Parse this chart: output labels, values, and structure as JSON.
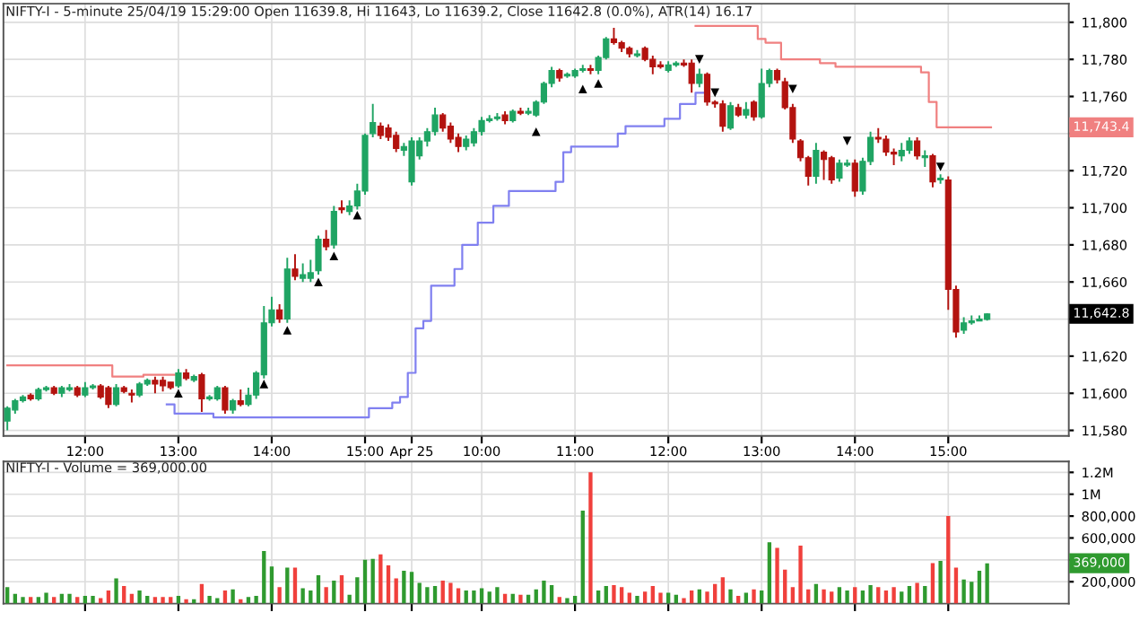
{
  "chart_data": [
    {
      "type": "candlestick",
      "title": "NIFTY-I - 5-minute 25/04/19 15:29:00 Open 11639.8, Hi 11643, Lo 11639.2, Close 11642.8 (0.0%), ATR(14) 16.17",
      "categories": [
        null,
        null,
        null,
        null,
        null,
        null,
        null,
        null,
        null,
        null,
        "12:00",
        null,
        null,
        null,
        null,
        null,
        null,
        null,
        null,
        null,
        null,
        null,
        "13:00",
        null,
        null,
        null,
        null,
        null,
        null,
        null,
        null,
        null,
        null,
        null,
        "14:00",
        null,
        null,
        null,
        null,
        null,
        null,
        null,
        null,
        null,
        null,
        null,
        "15:00",
        null,
        null,
        null,
        null,
        null,
        "Apr 25",
        null,
        null,
        null,
        null,
        null,
        null,
        null,
        null,
        "10:00",
        null,
        null,
        null,
        null,
        null,
        null,
        null,
        null,
        null,
        null,
        null,
        "11:00",
        null,
        null,
        null,
        null,
        null,
        null,
        null,
        null,
        null,
        null,
        null,
        "12:00",
        null,
        null,
        null,
        null,
        null,
        null,
        null,
        null,
        null,
        null,
        null,
        "13:00",
        null,
        null,
        null,
        null,
        null,
        null,
        null,
        null,
        null,
        null,
        null,
        "14:00",
        null,
        null,
        null,
        null,
        null,
        null,
        null,
        null,
        null,
        null,
        null,
        "15:00",
        null,
        null,
        null,
        null,
        null,
        null,
        null,
        null,
        null,
        null,
        null,
        null,
        null,
        null,
        null
      ],
      "ohlc": [
        [
          11585,
          11593,
          11580,
          11592
        ],
        [
          11591,
          11597,
          11589,
          11596
        ],
        [
          11596,
          11599,
          11595,
          11598
        ],
        [
          11599,
          11600,
          11596,
          11597
        ],
        [
          11597,
          11603,
          11596,
          11602
        ],
        [
          11602,
          11604,
          11601,
          11603
        ],
        [
          11603,
          11604,
          11599,
          11600
        ],
        [
          11600,
          11604,
          11598,
          11603
        ],
        [
          11602,
          11605,
          11601,
          11603
        ],
        [
          11603,
          11604,
          11598,
          11599
        ],
        [
          11599,
          11606,
          11598,
          11603
        ],
        [
          11603,
          11605,
          11602,
          11604
        ],
        [
          11604,
          11605,
          11597,
          11598
        ],
        [
          11603,
          11604,
          11592,
          11594
        ],
        [
          11594,
          11605,
          11593,
          11603
        ],
        [
          11603,
          11604,
          11600,
          11601
        ],
        [
          11600,
          11602,
          11595,
          11599
        ],
        [
          11599,
          11606,
          11598,
          11605
        ],
        [
          11605,
          11608,
          11604,
          11607
        ],
        [
          11607,
          11609,
          11600,
          11605
        ],
        [
          11607,
          11609,
          11601,
          11604
        ],
        [
          11606,
          11606,
          11602,
          11603
        ],
        [
          11604,
          11613,
          11603,
          11611
        ],
        [
          11611,
          11613,
          11607,
          11608
        ],
        [
          11607,
          11610,
          11606,
          11609
        ],
        [
          11610,
          11611,
          11590,
          11597
        ],
        [
          11597,
          11599,
          11596,
          11598
        ],
        [
          11597,
          11604,
          11596,
          11603
        ],
        [
          11603,
          11604,
          11589,
          11591
        ],
        [
          11591,
          11597,
          11589,
          11596
        ],
        [
          11596,
          11602,
          11593,
          11594
        ],
        [
          11594,
          11603,
          11593,
          11599
        ],
        [
          11599,
          11612,
          11597,
          11611
        ],
        [
          11610,
          11647,
          11608,
          11638
        ],
        [
          11638,
          11652,
          11636,
          11645
        ],
        [
          11645,
          11648,
          11638,
          11640
        ],
        [
          11640,
          11673,
          11638,
          11667
        ],
        [
          11667,
          11675,
          11661,
          11663
        ],
        [
          11662,
          11670,
          11660,
          11664
        ],
        [
          11662,
          11672,
          11660,
          11665
        ],
        [
          11666,
          11685,
          11664,
          11683
        ],
        [
          11683,
          11688,
          11677,
          11679
        ],
        [
          11680,
          11701,
          11678,
          11698
        ],
        [
          11700,
          11704,
          11697,
          11699
        ],
        [
          11698,
          11704,
          11696,
          11701
        ],
        [
          11701,
          11713,
          11699,
          11709
        ],
        [
          11709,
          11740,
          11707,
          11739
        ],
        [
          11740,
          11756,
          11738,
          11746
        ],
        [
          11744,
          11746,
          11737,
          11739
        ],
        [
          11743,
          11745,
          11736,
          11738
        ],
        [
          11739,
          11741,
          11730,
          11732
        ],
        [
          11731,
          11735,
          11728,
          11733
        ],
        [
          11714,
          11738,
          11712,
          11736
        ],
        [
          11728,
          11738,
          11726,
          11736
        ],
        [
          11736,
          11743,
          11733,
          11741
        ],
        [
          11741,
          11754,
          11739,
          11750
        ],
        [
          11750,
          11751,
          11741,
          11743
        ],
        [
          11744,
          11746,
          11735,
          11737
        ],
        [
          11738,
          11740,
          11730,
          11733
        ],
        [
          11733,
          11739,
          11731,
          11737
        ],
        [
          11735,
          11743,
          11733,
          11741
        ],
        [
          11741,
          11749,
          11739,
          11747
        ],
        [
          11747,
          11750,
          11746,
          11748
        ],
        [
          11748,
          11751,
          11747,
          11749
        ],
        [
          11750,
          11752,
          11745,
          11747
        ],
        [
          11747,
          11753,
          11746,
          11752
        ],
        [
          11752,
          11754,
          11750,
          11751
        ],
        [
          11751,
          11754,
          11750,
          11752
        ],
        [
          11750,
          11758,
          11749,
          11757
        ],
        [
          11757,
          11768,
          11756,
          11767
        ],
        [
          11767,
          11776,
          11765,
          11774
        ],
        [
          11774,
          11775,
          11768,
          11770
        ],
        [
          11771,
          11773,
          11770,
          11772
        ],
        [
          11771,
          11775,
          11770,
          11774
        ],
        [
          11774,
          11777,
          11773,
          11775
        ],
        [
          11775,
          11777,
          11772,
          11774
        ],
        [
          11774,
          11782,
          11772,
          11781
        ],
        [
          11781,
          11792,
          11780,
          11791
        ],
        [
          11791,
          11797,
          11788,
          11789
        ],
        [
          11789,
          11790,
          11784,
          11786
        ],
        [
          11786,
          11787,
          11781,
          11783
        ],
        [
          11782,
          11785,
          11781,
          11783
        ],
        [
          11786,
          11787,
          11779,
          11780
        ],
        [
          11780,
          11782,
          11772,
          11776
        ],
        [
          11777,
          11779,
          11775,
          11776
        ],
        [
          11774,
          11779,
          11773,
          11777
        ],
        [
          11777,
          11779,
          11776,
          11778
        ],
        [
          11778,
          11780,
          11776,
          11777
        ],
        [
          11778,
          11780,
          11762,
          11767
        ],
        [
          11767,
          11775,
          11765,
          11772
        ],
        [
          11772,
          11773,
          11755,
          11757
        ],
        [
          11757,
          11758,
          11754,
          11756
        ],
        [
          11756,
          11758,
          11741,
          11744
        ],
        [
          11743,
          11757,
          11742,
          11755
        ],
        [
          11754,
          11756,
          11749,
          11750
        ],
        [
          11750,
          11757,
          11748,
          11753
        ],
        [
          11757,
          11758,
          11747,
          11749
        ],
        [
          11749,
          11775,
          11748,
          11767
        ],
        [
          11767,
          11775,
          11765,
          11774
        ],
        [
          11774,
          11775,
          11767,
          11769
        ],
        [
          11768,
          11770,
          11753,
          11754
        ],
        [
          11754,
          11756,
          11735,
          11737
        ],
        [
          11736,
          11737,
          11725,
          11727
        ],
        [
          11727,
          11728,
          11712,
          11717
        ],
        [
          11717,
          11735,
          11713,
          11731
        ],
        [
          11730,
          11731,
          11715,
          11726
        ],
        [
          11727,
          11728,
          11713,
          11715
        ],
        [
          11716,
          11726,
          11714,
          11724
        ],
        [
          11723,
          11726,
          11722,
          11724
        ],
        [
          11724,
          11726,
          11706,
          11709
        ],
        [
          11709,
          11727,
          11707,
          11725
        ],
        [
          11725,
          11741,
          11723,
          11738
        ],
        [
          11738,
          11743,
          11735,
          11737
        ],
        [
          11737,
          11739,
          11728,
          11730
        ],
        [
          11730,
          11732,
          11723,
          11729
        ],
        [
          11728,
          11735,
          11725,
          11731
        ],
        [
          11731,
          11738,
          11729,
          11736
        ],
        [
          11736,
          11738,
          11726,
          11728
        ],
        [
          11727,
          11731,
          11722,
          11728
        ],
        [
          11728,
          11729,
          11711,
          11714
        ],
        [
          11715,
          11718,
          11713,
          11716
        ],
        [
          11715,
          11717,
          11645,
          11656
        ],
        [
          11656,
          11658,
          11630,
          11633
        ],
        [
          11634,
          11641,
          11632,
          11638
        ],
        [
          11638,
          11642,
          11637,
          11639
        ],
        [
          11639,
          11642,
          11639,
          11640
        ],
        [
          11639.8,
          11643,
          11639.2,
          11642.8
        ],
        null,
        null,
        null,
        null,
        null,
        null,
        null,
        null,
        null,
        null
      ],
      "colors": [
        "#1fa463",
        "#1fa463",
        "#1fa463",
        "#b3130f",
        "#1fa463",
        "#1fa463",
        "#b3130f",
        "#1fa463",
        "#1fa463",
        "#b3130f",
        "#1fa463",
        "#1fa463",
        "#b3130f",
        "#b3130f",
        "#1fa463",
        "#b3130f",
        "#b3130f",
        "#1fa463",
        "#1fa463",
        "#b3130f",
        "#b3130f",
        "#b3130f",
        "#1fa463",
        "#b3130f",
        "#1fa463",
        "#b3130f",
        "#1fa463",
        "#1fa463",
        "#b3130f",
        "#1fa463",
        "#b3130f",
        "#1fa463",
        "#1fa463",
        "#1fa463",
        "#1fa463",
        "#b3130f",
        "#1fa463",
        "#b3130f",
        "#1fa463",
        "#1fa463",
        "#1fa463",
        "#b3130f",
        "#1fa463",
        "#b3130f",
        "#1fa463",
        "#1fa463",
        "#1fa463",
        "#1fa463",
        "#b3130f",
        "#b3130f",
        "#b3130f",
        "#1fa463",
        "#1fa463",
        "#1fa463",
        "#1fa463",
        "#1fa463",
        "#b3130f",
        "#b3130f",
        "#b3130f",
        "#1fa463",
        "#1fa463",
        "#1fa463",
        "#1fa463",
        "#1fa463",
        "#b3130f",
        "#1fa463",
        "#b3130f",
        "#1fa463",
        "#1fa463",
        "#1fa463",
        "#1fa463",
        "#b3130f",
        "#1fa463",
        "#1fa463",
        "#1fa463",
        "#b3130f",
        "#1fa463",
        "#1fa463",
        "#b3130f",
        "#b3130f",
        "#b3130f",
        "#1fa463",
        "#b3130f",
        "#b3130f",
        "#b3130f",
        "#1fa463",
        "#1fa463",
        "#b3130f",
        "#b3130f",
        "#1fa463",
        "#b3130f",
        "#b3130f",
        "#b3130f",
        "#1fa463",
        "#b3130f",
        "#1fa463",
        "#b3130f",
        "#1fa463",
        "#1fa463",
        "#b3130f",
        "#b3130f",
        "#b3130f",
        "#b3130f",
        "#b3130f",
        "#1fa463",
        "#b3130f",
        "#b3130f",
        "#1fa463",
        "#1fa463",
        "#b3130f",
        "#1fa463",
        "#1fa463",
        "#b3130f",
        "#b3130f",
        "#b3130f",
        "#1fa463",
        "#1fa463",
        "#b3130f",
        "#1fa463",
        "#b3130f",
        "#1fa463",
        "#b3130f",
        "#b3130f",
        "#1fa463",
        "#1fa463",
        "#1fa463",
        "#1fa463",
        null,
        null,
        null,
        null,
        null,
        null,
        null,
        null,
        null,
        null
      ],
      "series": [
        {
          "type": "step",
          "color": "#f08080",
          "values": [
            11615,
            11615,
            11615,
            11615,
            11615,
            11615,
            11615,
            11615,
            11615,
            11615,
            11615,
            11615,
            11615,
            11615,
            11609,
            11609,
            11609,
            11609,
            11610,
            11610,
            11610,
            11610,
            null,
            null,
            null,
            null,
            null,
            null,
            null,
            null,
            null,
            null,
            null,
            null,
            null,
            null,
            null,
            null,
            null,
            null,
            null,
            null,
            null,
            null,
            null,
            null,
            null,
            null,
            null,
            null,
            null,
            null,
            null,
            null,
            null,
            null,
            null,
            null,
            null,
            null,
            null,
            null,
            null,
            null,
            null,
            null,
            null,
            null,
            null,
            null,
            null,
            null,
            null,
            null,
            null,
            null,
            null,
            null,
            null,
            null,
            null,
            null,
            null,
            null,
            null,
            null,
            null,
            null,
            null,
            11798,
            11798,
            11798,
            11798,
            11798,
            11798,
            11798,
            11798,
            11791,
            11789,
            11789,
            11780,
            11780,
            11780,
            11780,
            11780,
            11778,
            11778,
            11776,
            11776,
            11776,
            11776,
            11776,
            11776,
            11776,
            11776,
            11776,
            11776,
            11776,
            11773,
            11757,
            11743.4,
            11743.4,
            11743.4,
            11743.4,
            11743.4,
            11743.4,
            11743.4,
            null,
            null,
            null,
            null,
            null,
            null,
            null,
            null,
            null,
            null
          ]
        },
        {
          "type": "step",
          "color": "#8080f0",
          "values": [
            null,
            null,
            null,
            null,
            null,
            null,
            null,
            null,
            null,
            null,
            null,
            null,
            null,
            null,
            null,
            null,
            null,
            null,
            null,
            null,
            null,
            11594,
            11589,
            11589,
            11589,
            11589,
            11589,
            11587,
            11587,
            11587,
            11587,
            11587,
            11587,
            11587,
            11587,
            11587,
            11587,
            11587,
            11587,
            11587,
            11587,
            11587,
            11587,
            11587,
            11587,
            11587,
            11587,
            11592,
            11592,
            11592,
            11595,
            11598,
            11611,
            11635,
            11639,
            11658,
            11658,
            11658,
            11667,
            11680,
            11680,
            11692,
            11692,
            11701,
            11701,
            11709,
            11709,
            11709,
            11709,
            11709,
            11709,
            11714,
            11730,
            11733,
            11733,
            11733,
            11733,
            11733,
            11733,
            11740,
            11744,
            11744,
            11744,
            11744,
            11744,
            11748,
            11748,
            11756,
            11756,
            11762,
            null,
            null,
            null,
            null,
            null,
            null,
            null,
            null,
            null,
            null,
            null,
            null,
            null,
            null,
            null,
            null,
            null,
            null,
            null,
            null,
            null,
            null,
            null,
            null,
            null,
            null,
            null,
            null,
            null,
            null,
            null,
            null,
            null,
            null,
            null,
            null,
            null,
            null,
            null,
            null,
            null,
            null,
            null,
            null,
            null,
            null,
            null
          ]
        },
        {
          "type": "scatter",
          "color": "#000000",
          "marker": "triangle",
          "values": [
            null,
            null,
            null,
            null,
            null,
            null,
            null,
            null,
            null,
            null,
            null,
            null,
            null,
            null,
            null,
            null,
            null,
            null,
            null,
            null,
            null,
            null,
            11600,
            null,
            null,
            null,
            null,
            null,
            null,
            null,
            null,
            null,
            null,
            11605,
            null,
            null,
            11634,
            null,
            null,
            null,
            11660,
            null,
            11674,
            null,
            null,
            11696,
            null,
            null,
            null,
            null,
            null,
            null,
            null,
            null,
            null,
            null,
            null,
            null,
            null,
            null,
            null,
            null,
            null,
            null,
            null,
            null,
            null,
            null,
            11741,
            null,
            null,
            null,
            null,
            null,
            11764,
            null,
            11767,
            null,
            null,
            null,
            null,
            null,
            null,
            null,
            null,
            null,
            null,
            null,
            null,
            null,
            null,
            null,
            null,
            null,
            null,
            null,
            null,
            null,
            null,
            null,
            null,
            null,
            null,
            null,
            null,
            null,
            null,
            null,
            null,
            null,
            null,
            null,
            null,
            null,
            null,
            null,
            null,
            null,
            null,
            null,
            null,
            null,
            null,
            null,
            null,
            null,
            null,
            null,
            null,
            null,
            null,
            null,
            null,
            null,
            null,
            null,
            null
          ]
        },
        {
          "type": "scatter",
          "color": "#000000",
          "marker": "triangle",
          "values": [
            null,
            null,
            null,
            null,
            null,
            null,
            null,
            null,
            null,
            null,
            null,
            null,
            null,
            null,
            null,
            null,
            null,
            null,
            null,
            null,
            null,
            null,
            null,
            null,
            null,
            null,
            null,
            null,
            null,
            null,
            null,
            null,
            null,
            null,
            null,
            null,
            null,
            null,
            null,
            null,
            null,
            null,
            null,
            null,
            null,
            null,
            null,
            null,
            null,
            null,
            null,
            null,
            null,
            null,
            null,
            null,
            null,
            null,
            null,
            null,
            null,
            null,
            null,
            null,
            null,
            null,
            null,
            null,
            null,
            null,
            null,
            null,
            null,
            null,
            null,
            null,
            null,
            null,
            null,
            null,
            null,
            null,
            null,
            null,
            null,
            null,
            null,
            null,
            null,
            11780,
            null,
            11762,
            null,
            null,
            null,
            null,
            null,
            null,
            null,
            null,
            null,
            11764,
            null,
            null,
            null,
            null,
            null,
            null,
            11736,
            null,
            null,
            null,
            null,
            null,
            null,
            null,
            null,
            null,
            null,
            null,
            11722,
            null,
            null,
            null,
            null,
            null,
            null,
            null,
            null,
            null,
            null,
            null,
            null,
            null,
            null,
            null,
            null
          ]
        }
      ],
      "annotations": [
        "11,743.4",
        "11,642.8"
      ],
      "ylim": [
        11577,
        11810
      ],
      "yticks": [
        {
          "value": 11580,
          "label": "11,580"
        },
        {
          "value": 11600,
          "label": "11,600"
        },
        {
          "value": 11620,
          "label": "11,620"
        },
        {
          "value": 11640,
          "label": null
        },
        {
          "value": 11660,
          "label": "11,660"
        },
        {
          "value": 11680,
          "label": "11,680"
        },
        {
          "value": 11700,
          "label": "11,700"
        },
        {
          "value": 11720,
          "label": "11,720"
        },
        {
          "value": 11740,
          "label": null
        },
        {
          "value": 11760,
          "label": "11,760"
        },
        {
          "value": 11780,
          "label": "11,780"
        },
        {
          "value": 11800,
          "label": "11,800"
        }
      ],
      "grid": true
    },
    {
      "type": "bar",
      "title": "NIFTY-I - Volume = 369,000.00",
      "tick_labels": "y",
      "categories": [
        null,
        null,
        null,
        null,
        null,
        null,
        null,
        null,
        null,
        null,
        null,
        null,
        null,
        null,
        null,
        null,
        null,
        null,
        null,
        null,
        null,
        null,
        null,
        null,
        null,
        null,
        null,
        null,
        null,
        null,
        null,
        null,
        null,
        null,
        null,
        null,
        null,
        null,
        null,
        null,
        null,
        null,
        null,
        null,
        null,
        null,
        null,
        null,
        null,
        null,
        null,
        null,
        null,
        null,
        null,
        null,
        null,
        null,
        null,
        null,
        null,
        null,
        null,
        null,
        null,
        null,
        null,
        null,
        null,
        null,
        null,
        null,
        null,
        null,
        null,
        null,
        null,
        null,
        null,
        null,
        null,
        null,
        null,
        null,
        null,
        null,
        null,
        null,
        null,
        null,
        null,
        null,
        null,
        null,
        null,
        null,
        null,
        null,
        null,
        null,
        null,
        null,
        null,
        null,
        null,
        null,
        null,
        null,
        null,
        null,
        null,
        null,
        null,
        null,
        null,
        null,
        null,
        null,
        null,
        null,
        null,
        null,
        null,
        null,
        null,
        null,
        null,
        null,
        null,
        null,
        null,
        null,
        null,
        null,
        null,
        null,
        null
      ],
      "series": [
        {
          "values": [
            150000,
            90000,
            60000,
            60000,
            60000,
            100000,
            60000,
            90000,
            90000,
            60000,
            70000,
            70000,
            50000,
            120000,
            230000,
            160000,
            90000,
            120000,
            70000,
            60000,
            60000,
            60000,
            70000,
            40000,
            40000,
            180000,
            70000,
            50000,
            120000,
            130000,
            40000,
            60000,
            70000,
            480000,
            340000,
            150000,
            330000,
            330000,
            140000,
            120000,
            260000,
            150000,
            210000,
            260000,
            80000,
            240000,
            400000,
            410000,
            450000,
            350000,
            230000,
            300000,
            290000,
            190000,
            150000,
            160000,
            210000,
            190000,
            140000,
            120000,
            120000,
            140000,
            110000,
            150000,
            90000,
            90000,
            80000,
            80000,
            130000,
            210000,
            170000,
            60000,
            50000,
            70000,
            850000,
            1200000,
            120000,
            160000,
            170000,
            150000,
            100000,
            70000,
            110000,
            160000,
            100000,
            100000,
            80000,
            50000,
            120000,
            130000,
            110000,
            180000,
            240000,
            130000,
            70000,
            100000,
            130000,
            120000,
            560000,
            510000,
            310000,
            150000,
            530000,
            130000,
            180000,
            130000,
            110000,
            150000,
            120000,
            150000,
            120000,
            170000,
            150000,
            120000,
            150000,
            110000,
            160000,
            190000,
            160000,
            370000,
            390000,
            800000,
            330000,
            220000,
            200000,
            300000,
            369000,
            null,
            null,
            null,
            null,
            null,
            null,
            null,
            null,
            null,
            null
          ],
          "colors": [
            "#2f9a2f",
            "#2f9a2f",
            "#2f9a2f",
            "#f0403c",
            "#2f9a2f",
            "#2f9a2f",
            "#f0403c",
            "#2f9a2f",
            "#2f9a2f",
            "#f0403c",
            "#2f9a2f",
            "#2f9a2f",
            "#f0403c",
            "#f0403c",
            "#2f9a2f",
            "#f0403c",
            "#f0403c",
            "#2f9a2f",
            "#2f9a2f",
            "#f0403c",
            "#f0403c",
            "#f0403c",
            "#2f9a2f",
            "#f0403c",
            "#2f9a2f",
            "#f0403c",
            "#2f9a2f",
            "#2f9a2f",
            "#f0403c",
            "#2f9a2f",
            "#f0403c",
            "#2f9a2f",
            "#2f9a2f",
            "#2f9a2f",
            "#2f9a2f",
            "#f0403c",
            "#2f9a2f",
            "#f0403c",
            "#2f9a2f",
            "#2f9a2f",
            "#2f9a2f",
            "#f0403c",
            "#2f9a2f",
            "#f0403c",
            "#2f9a2f",
            "#2f9a2f",
            "#2f9a2f",
            "#2f9a2f",
            "#f0403c",
            "#f0403c",
            "#f0403c",
            "#2f9a2f",
            "#2f9a2f",
            "#2f9a2f",
            "#2f9a2f",
            "#2f9a2f",
            "#f0403c",
            "#f0403c",
            "#f0403c",
            "#2f9a2f",
            "#2f9a2f",
            "#2f9a2f",
            "#2f9a2f",
            "#2f9a2f",
            "#f0403c",
            "#2f9a2f",
            "#f0403c",
            "#2f9a2f",
            "#2f9a2f",
            "#2f9a2f",
            "#2f9a2f",
            "#f0403c",
            "#2f9a2f",
            "#2f9a2f",
            "#2f9a2f",
            "#f0403c",
            "#2f9a2f",
            "#2f9a2f",
            "#f0403c",
            "#f0403c",
            "#f0403c",
            "#2f9a2f",
            "#f0403c",
            "#f0403c",
            "#f0403c",
            "#2f9a2f",
            "#2f9a2f",
            "#f0403c",
            "#f0403c",
            "#2f9a2f",
            "#f0403c",
            "#f0403c",
            "#f0403c",
            "#2f9a2f",
            "#f0403c",
            "#2f9a2f",
            "#f0403c",
            "#2f9a2f",
            "#2f9a2f",
            "#f0403c",
            "#f0403c",
            "#f0403c",
            "#f0403c",
            "#f0403c",
            "#2f9a2f",
            "#f0403c",
            "#f0403c",
            "#2f9a2f",
            "#2f9a2f",
            "#f0403c",
            "#2f9a2f",
            "#2f9a2f",
            "#f0403c",
            "#f0403c",
            "#f0403c",
            "#2f9a2f",
            "#2f9a2f",
            "#f0403c",
            "#2f9a2f",
            "#f0403c",
            "#2f9a2f",
            "#f0403c",
            "#f0403c",
            "#2f9a2f",
            "#2f9a2f",
            "#2f9a2f",
            "#2f9a2f",
            null,
            null,
            null,
            null,
            null,
            null,
            null,
            null,
            null,
            null
          ]
        }
      ],
      "annotations": [
        "369,000"
      ],
      "ylim": [
        0,
        1300000
      ],
      "yticks": [
        {
          "value": 200000,
          "label": "200,000"
        },
        {
          "value": 400000,
          "label": null
        },
        {
          "value": 600000,
          "label": "600,000"
        },
        {
          "value": 800000,
          "label": "800,000"
        },
        {
          "value": 1000000,
          "label": "1M"
        },
        {
          "value": 1200000,
          "label": "1.2M"
        }
      ],
      "grid": true
    }
  ]
}
